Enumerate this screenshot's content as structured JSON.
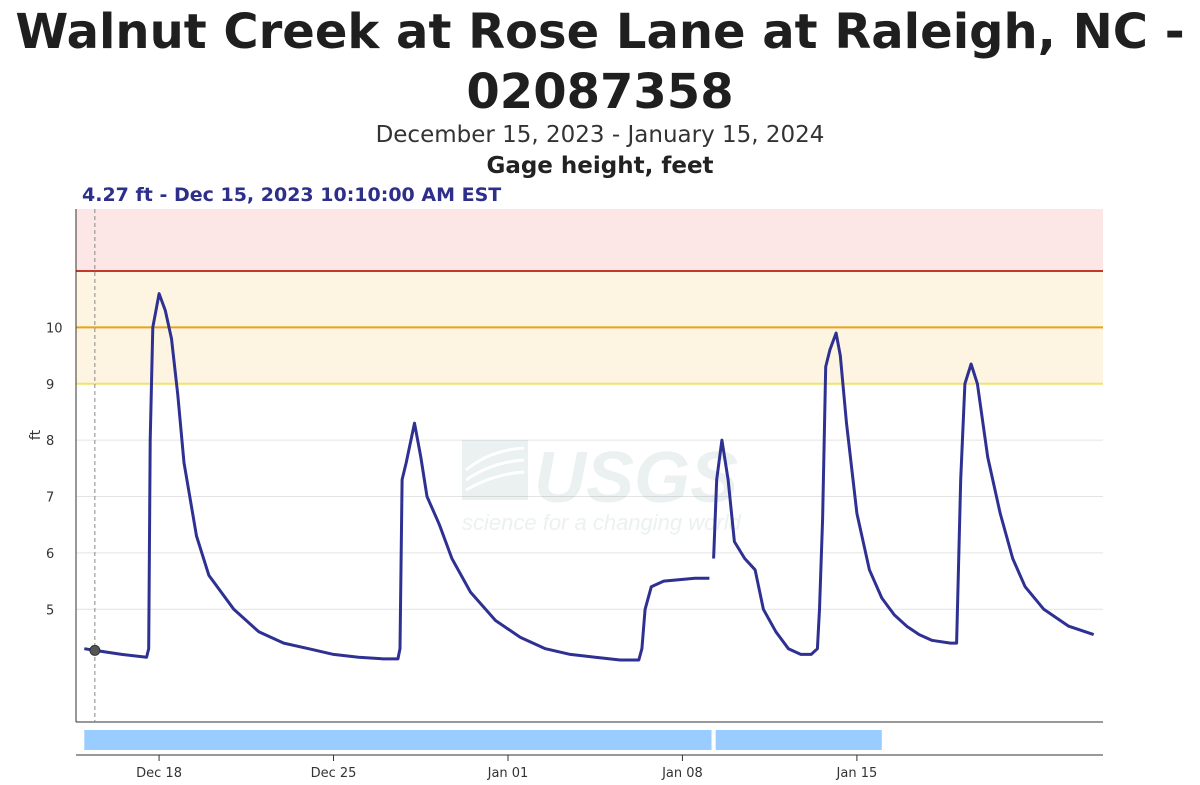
{
  "title_line1": "Walnut Creek at Rose Lane at Raleigh, NC -",
  "title_line2": "02087358",
  "subtitle": "December 15, 2023 - January 15, 2024",
  "parameter": "Gage height, feet",
  "tooltip": "4.27 ft - Dec 15, 2023 10:10:00 AM EST",
  "watermark": {
    "brand": "USGS",
    "tagline": "science for a changing world"
  },
  "colors": {
    "series": "#2e3192",
    "flood_zone_major": "#fde6e6",
    "flood_zone_minor": "#fdf5e2",
    "major_flood_line": "#c0392b",
    "moderate_flood_line": "#e8a317",
    "action_line": "#f2e36a",
    "approval_bar": "#99ccff"
  },
  "chart_data": {
    "type": "line",
    "ylabel": "ft",
    "ylim": [
      3.0,
      12.1
    ],
    "y_ticks": [
      "5",
      "6",
      "7",
      "8",
      "9",
      "10"
    ],
    "x_ticks": [
      "Dec 18",
      "Dec 25",
      "Jan 01",
      "Jan 08",
      "Jan 15"
    ],
    "thresholds": [
      {
        "value": 9.0,
        "color": "#f2e36a"
      },
      {
        "value": 10.0,
        "color": "#e8a317"
      },
      {
        "value": 11.0,
        "color": "#c0392b"
      }
    ],
    "zones": [
      {
        "from": 9.0,
        "to": 11.0,
        "color": "#fdf5e2"
      },
      {
        "from": 11.0,
        "to": 12.1,
        "color": "#fde6e6"
      }
    ],
    "hover_point": {
      "x": "2023-12-15 10:10",
      "y": 4.27
    },
    "series": [
      {
        "segments": [
          [
            [
              "2023-12-15 00:00",
              4.3
            ],
            [
              "2023-12-15 10:10",
              4.27
            ],
            [
              "2023-12-16 12:00",
              4.2
            ],
            [
              "2023-12-17 12:00",
              4.15
            ],
            [
              "2023-12-17 14:00",
              4.3
            ],
            [
              "2023-12-17 15:30",
              8.0
            ],
            [
              "2023-12-17 18:00",
              10.0
            ],
            [
              "2023-12-18 00:00",
              10.6
            ],
            [
              "2023-12-18 06:00",
              10.3
            ],
            [
              "2023-12-18 12:00",
              9.8
            ],
            [
              "2023-12-18 18:00",
              8.8
            ],
            [
              "2023-12-19 00:00",
              7.6
            ],
            [
              "2023-12-19 12:00",
              6.3
            ],
            [
              "2023-12-20 00:00",
              5.6
            ],
            [
              "2023-12-21 00:00",
              5.0
            ],
            [
              "2023-12-22 00:00",
              4.6
            ],
            [
              "2023-12-23 00:00",
              4.4
            ],
            [
              "2023-12-24 00:00",
              4.3
            ],
            [
              "2023-12-25 00:00",
              4.2
            ],
            [
              "2023-12-26 00:00",
              4.15
            ],
            [
              "2023-12-27 00:00",
              4.12
            ],
            [
              "2023-12-27 14:00",
              4.12
            ],
            [
              "2023-12-27 16:00",
              4.3
            ],
            [
              "2023-12-27 18:00",
              7.3
            ],
            [
              "2023-12-27 22:00",
              7.6
            ],
            [
              "2023-12-28 06:00",
              8.3
            ],
            [
              "2023-12-28 12:00",
              7.7
            ],
            [
              "2023-12-28 18:00",
              7.0
            ],
            [
              "2023-12-29 06:00",
              6.5
            ],
            [
              "2023-12-29 18:00",
              5.9
            ],
            [
              "2023-12-30 12:00",
              5.3
            ],
            [
              "2023-12-31 12:00",
              4.8
            ],
            [
              "2024-01-01 12:00",
              4.5
            ],
            [
              "2024-01-02 12:00",
              4.3
            ],
            [
              "2024-01-03 12:00",
              4.2
            ],
            [
              "2024-01-04 12:00",
              4.15
            ],
            [
              "2024-01-05 12:00",
              4.1
            ],
            [
              "2024-01-06 06:00",
              4.1
            ],
            [
              "2024-01-06 09:00",
              4.3
            ],
            [
              "2024-01-06 12:00",
              5.0
            ],
            [
              "2024-01-06 18:00",
              5.4
            ],
            [
              "2024-01-07 06:00",
              5.5
            ],
            [
              "2024-01-08 12:00",
              5.55
            ],
            [
              "2024-01-09 02:00",
              5.55
            ]
          ],
          [
            [
              "2024-01-09 06:00",
              5.9
            ],
            [
              "2024-01-09 09:00",
              7.3
            ],
            [
              "2024-01-09 14:00",
              8.0
            ],
            [
              "2024-01-09 20:00",
              7.3
            ],
            [
              "2024-01-10 02:00",
              6.2
            ],
            [
              "2024-01-10 12:00",
              5.9
            ],
            [
              "2024-01-10 22:00",
              5.7
            ],
            [
              "2024-01-11 06:00",
              5.0
            ],
            [
              "2024-01-11 18:00",
              4.6
            ],
            [
              "2024-01-12 06:00",
              4.3
            ],
            [
              "2024-01-12 18:00",
              4.2
            ],
            [
              "2024-01-13 04:00",
              4.2
            ],
            [
              "2024-01-13 10:00",
              4.3
            ],
            [
              "2024-01-13 12:00",
              5.0
            ],
            [
              "2024-01-13 15:00",
              6.6
            ],
            [
              "2024-01-13 18:00",
              9.3
            ],
            [
              "2024-01-13 22:00",
              9.6
            ],
            [
              "2024-01-14 04:00",
              9.9
            ],
            [
              "2024-01-14 08:00",
              9.5
            ],
            [
              "2024-01-14 14:00",
              8.3
            ],
            [
              "2024-01-15 00:00",
              6.7
            ],
            [
              "2024-01-15 12:00",
              5.7
            ],
            [
              "2024-01-16 00:00",
              5.2
            ],
            [
              "2024-01-16 12:00",
              4.9
            ],
            [
              "2024-01-17 00:00",
              4.7
            ],
            [
              "2024-01-17 12:00",
              4.55
            ],
            [
              "2024-01-18 00:00",
              4.45
            ],
            [
              "2024-01-18 18:00",
              4.4
            ],
            [
              "2024-01-19 00:00",
              4.4
            ],
            [
              "2024-01-19 04:00",
              7.3
            ],
            [
              "2024-01-19 08:00",
              9.0
            ],
            [
              "2024-01-19 14:00",
              9.35
            ],
            [
              "2024-01-19 20:00",
              9.0
            ],
            [
              "2024-01-20 06:00",
              7.7
            ],
            [
              "2024-01-20 18:00",
              6.7
            ],
            [
              "2024-01-21 06:00",
              5.9
            ],
            [
              "2024-01-21 18:00",
              5.4
            ],
            [
              "2024-01-22 12:00",
              5.0
            ],
            [
              "2024-01-23 12:00",
              4.7
            ],
            [
              "2024-01-24 12:00",
              4.55
            ]
          ]
        ]
      }
    ],
    "approval_bar_segments": [
      [
        "2023-12-15 00:00",
        "2024-01-09 04:00"
      ],
      [
        "2024-01-09 08:00",
        "2024-01-15 23:59"
      ]
    ]
  }
}
